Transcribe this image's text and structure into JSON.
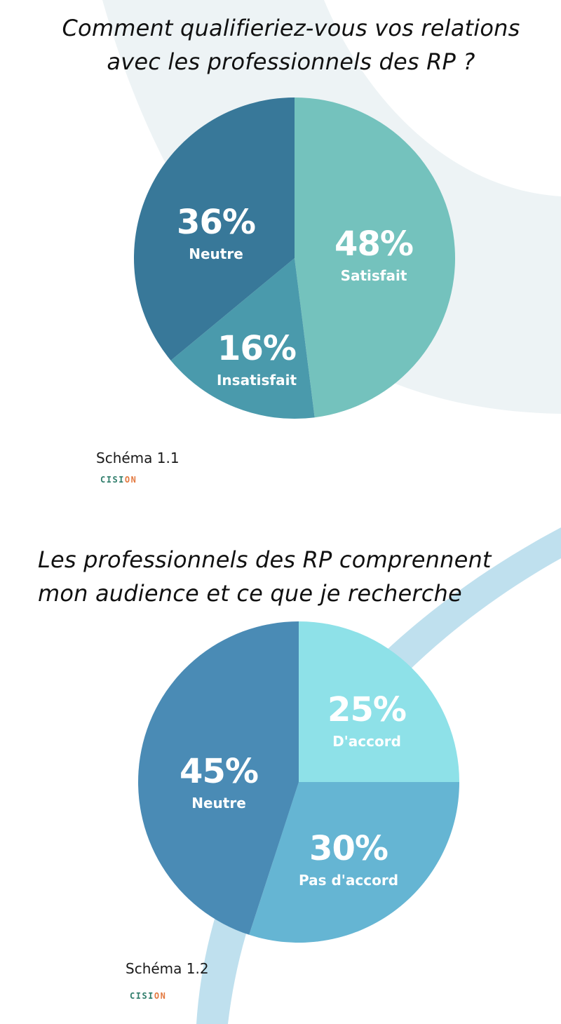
{
  "chart_data": [
    {
      "type": "pie",
      "title": "Comment qualifieriez-vous vos relations avec les professionnels des RP ?",
      "title_lines": [
        "Comment qualifieriez-vous vos relations",
        "avec les professionnels des RP ?"
      ],
      "start_angle_deg": 0,
      "direction": "clockwise",
      "slices": [
        {
          "label": "Satisfait",
          "value": 48,
          "value_label": "48%",
          "color": "#74c2bd"
        },
        {
          "label": "Insatisfait",
          "value": 16,
          "value_label": "16%",
          "color": "#4a9aac"
        },
        {
          "label": "Neutre",
          "value": 36,
          "value_label": "36%",
          "color": "#387899"
        }
      ],
      "caption": "Schéma 1.1",
      "logo_text": [
        "CISI",
        "ON"
      ]
    },
    {
      "type": "pie",
      "title": "Les professionnels des RP comprennent mon audience et ce que je recherche",
      "title_lines": [
        "Les professionnels des RP comprennent",
        "mon audience et ce que je recherche"
      ],
      "start_angle_deg": 0,
      "direction": "clockwise",
      "slices": [
        {
          "label": "D'accord",
          "value": 25,
          "value_label": "25%",
          "color": "#8ee1e8"
        },
        {
          "label": "Pas d'accord",
          "value": 30,
          "value_label": "30%",
          "color": "#65b5d3"
        },
        {
          "label": "Neutre",
          "value": 45,
          "value_label": "45%",
          "color": "#4a8bb5"
        }
      ],
      "caption": "Schéma 1.2",
      "logo_text": [
        "CISI",
        "ON"
      ]
    }
  ],
  "colors": {
    "background": "#ffffff",
    "bg_shape_top": "#edf3f5",
    "bg_shape_bottom": "#bfe0ee",
    "title_text": "#111111",
    "label_text": "#ffffff",
    "logo_primary": "#2f7d6b",
    "logo_accent": "#e3793f"
  }
}
